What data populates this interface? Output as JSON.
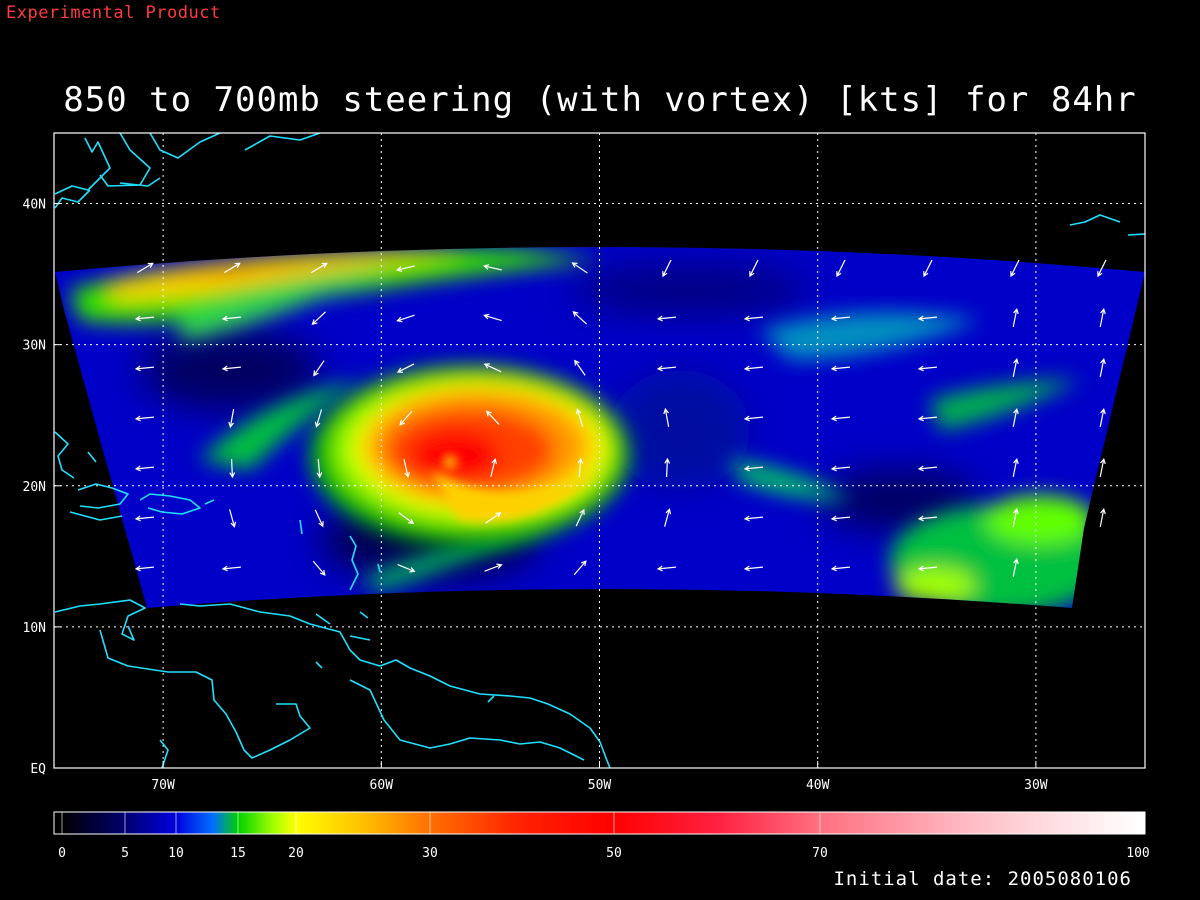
{
  "header": {
    "tag": "Experimental Product",
    "title": "850 to 700mb steering (with vortex) [kts] for 84hr"
  },
  "footer": {
    "initial_date": "Initial date: 2005080106"
  },
  "colors": {
    "background": "#000000",
    "coastline": "#20e0ff",
    "grid": "#ffffff",
    "frame": "#ffffff",
    "vectors": "#ffffff",
    "tag": "#ff3b3b"
  },
  "chart_data": {
    "type": "heatmap",
    "field": "850 to 700mb steering wind speed (kts)",
    "xlim": [
      -75,
      -25
    ],
    "ylim": [
      0,
      45
    ],
    "x_ticks": [
      {
        "value": -70,
        "label": "70W"
      },
      {
        "value": -60,
        "label": "60W"
      },
      {
        "value": -50,
        "label": "50W"
      },
      {
        "value": -40,
        "label": "40W"
      },
      {
        "value": -30,
        "label": "30W"
      }
    ],
    "y_ticks": [
      {
        "value": 0,
        "label": "EQ"
      },
      {
        "value": 10,
        "label": "10N"
      },
      {
        "value": 20,
        "label": "20N"
      },
      {
        "value": 30,
        "label": "30N"
      },
      {
        "value": 40,
        "label": "40N"
      }
    ],
    "grid": true,
    "colorbar": {
      "range": [
        0,
        100
      ],
      "tick_labels": [
        "0",
        "5",
        "10",
        "15",
        "20",
        "30",
        "50",
        "70",
        "100"
      ],
      "tick_values": [
        0,
        5,
        10,
        15,
        20,
        30,
        50,
        70,
        100
      ],
      "stops": [
        {
          "v": 0,
          "c": "#000000"
        },
        {
          "v": 5,
          "c": "#000070"
        },
        {
          "v": 10,
          "c": "#0000e0"
        },
        {
          "v": 13,
          "c": "#0070ff"
        },
        {
          "v": 15,
          "c": "#00d000"
        },
        {
          "v": 18,
          "c": "#a0ff00"
        },
        {
          "v": 20,
          "c": "#ffff00"
        },
        {
          "v": 25,
          "c": "#ffc000"
        },
        {
          "v": 30,
          "c": "#ff7000"
        },
        {
          "v": 40,
          "c": "#ff2000"
        },
        {
          "v": 50,
          "c": "#ff0000"
        },
        {
          "v": 60,
          "c": "#ff2040"
        },
        {
          "v": 70,
          "c": "#ff7080"
        },
        {
          "v": 85,
          "c": "#ffc0c8"
        },
        {
          "v": 100,
          "c": "#ffffff"
        }
      ]
    },
    "vortex_center": {
      "lon": -56.8,
      "lat": 22.0
    },
    "speed_features": [
      {
        "name": "hurricane vortex",
        "lon": -56.8,
        "lat": 22.0,
        "peak_kts": 50
      },
      {
        "name": "northern jet",
        "lon": -63.0,
        "lat": 35.5,
        "peak_kts": 25
      },
      {
        "name": "southeast region",
        "lon": -30.0,
        "lat": 16.0,
        "peak_kts": 16
      }
    ]
  }
}
